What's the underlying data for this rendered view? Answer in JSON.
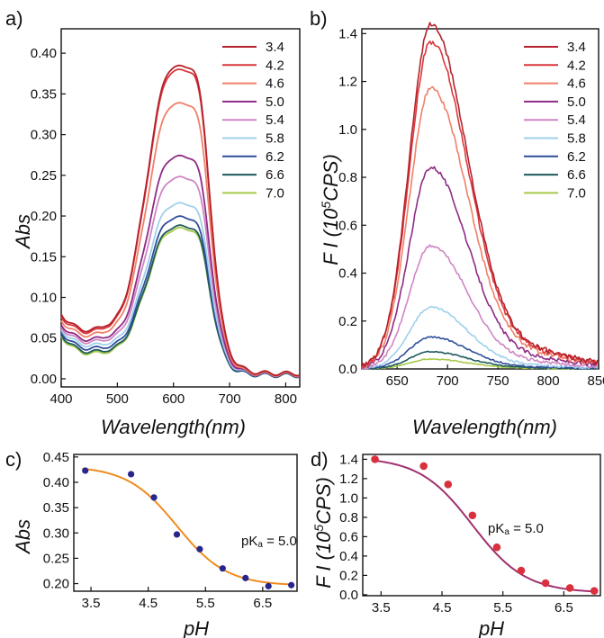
{
  "chart_data": [
    {
      "panel": "a)",
      "type": "line",
      "xlabel": "Wavelength(nm)",
      "ylabel": "Abs",
      "xlim": [
        400,
        825
      ],
      "ylim": [
        -0.01,
        0.43
      ],
      "xticks": [
        "400",
        "500",
        "600",
        "700",
        "800"
      ],
      "yticks": [
        "0.00",
        "0.05",
        "0.10",
        "0.15",
        "0.20",
        "0.25",
        "0.30",
        "0.35",
        "0.40"
      ],
      "legend_placement": "top-right",
      "series": [
        {
          "name": "3.4",
          "color": "#b5222b",
          "peak": 0.42,
          "shoulder": 0.37,
          "base400": 0.075,
          "valley": 0.05,
          "tail": 0.006
        },
        {
          "name": "4.2",
          "color": "#d9383e",
          "peak": 0.415,
          "shoulder": 0.365,
          "base400": 0.072,
          "valley": 0.048,
          "tail": 0.006
        },
        {
          "name": "4.6",
          "color": "#ef8068",
          "peak": 0.37,
          "shoulder": 0.325,
          "base400": 0.068,
          "valley": 0.045,
          "tail": 0.005
        },
        {
          "name": "5.0",
          "color": "#8e2b85",
          "peak": 0.297,
          "shoulder": 0.262,
          "base400": 0.063,
          "valley": 0.04,
          "tail": 0.005
        },
        {
          "name": "5.4",
          "color": "#cf86c4",
          "peak": 0.268,
          "shoulder": 0.237,
          "base400": 0.06,
          "valley": 0.037,
          "tail": 0.005
        },
        {
          "name": "5.8",
          "color": "#9fd0ec",
          "peak": 0.232,
          "shoulder": 0.206,
          "base400": 0.057,
          "valley": 0.033,
          "tail": 0.005
        },
        {
          "name": "6.2",
          "color": "#2f4e9a",
          "peak": 0.215,
          "shoulder": 0.19,
          "base400": 0.055,
          "valley": 0.03,
          "tail": 0.004
        },
        {
          "name": "6.6",
          "color": "#1e5a5c",
          "peak": 0.203,
          "shoulder": 0.18,
          "base400": 0.052,
          "valley": 0.026,
          "tail": 0.004
        },
        {
          "name": "7.0",
          "color": "#a6c94a",
          "peak": 0.2,
          "shoulder": 0.177,
          "base400": 0.05,
          "valley": 0.024,
          "tail": 0.004
        }
      ]
    },
    {
      "panel": "b)",
      "type": "line",
      "xlabel": "Wavelength(nm)",
      "ylabel": "F I (10",
      "ylabel_sup": "5",
      "ylabel_tail": "CPS)",
      "xlim": [
        615,
        850
      ],
      "ylim": [
        0,
        1.42
      ],
      "xticks": [
        "650",
        "700",
        "750",
        "800",
        "850"
      ],
      "yticks": [
        "0.0",
        "0.2",
        "0.4",
        "0.6",
        "0.8",
        "1.0",
        "1.2",
        "1.4"
      ],
      "legend_placement": "top-right",
      "series": [
        {
          "name": "3.4",
          "color": "#b5222b",
          "peak": 1.4
        },
        {
          "name": "4.2",
          "color": "#d9383e",
          "peak": 1.33
        },
        {
          "name": "4.6",
          "color": "#ef8068",
          "peak": 1.14
        },
        {
          "name": "5.0",
          "color": "#8e2b85",
          "peak": 0.82
        },
        {
          "name": "5.4",
          "color": "#cf86c4",
          "peak": 0.5
        },
        {
          "name": "5.8",
          "color": "#9fd0ec",
          "peak": 0.25
        },
        {
          "name": "6.2",
          "color": "#2f4e9a",
          "peak": 0.13
        },
        {
          "name": "6.6",
          "color": "#1e5a5c",
          "peak": 0.07
        },
        {
          "name": "7.0",
          "color": "#a6c94a",
          "peak": 0.04
        }
      ]
    },
    {
      "panel": "c)",
      "type": "scatter",
      "xlabel": "pH",
      "ylabel": "Abs",
      "xlim": [
        3.2,
        7.1
      ],
      "ylim": [
        0.185,
        0.455
      ],
      "xticks": [
        "3.5",
        "4.5",
        "5.5",
        "6.5"
      ],
      "yticks": [
        "0.20",
        "0.25",
        "0.30",
        "0.35",
        "0.40",
        "0.45"
      ],
      "annotation": "pK",
      "annotation_sub": "a",
      "annotation_tail": " = 5.0",
      "marker_color": "#26268c",
      "fit_color": "#f08c1e",
      "fit": {
        "top": 0.432,
        "bottom": 0.196,
        "pKa": 5.0
      },
      "points": [
        {
          "x": 3.4,
          "y": 0.423
        },
        {
          "x": 4.2,
          "y": 0.416
        },
        {
          "x": 4.6,
          "y": 0.37
        },
        {
          "x": 5.0,
          "y": 0.297
        },
        {
          "x": 5.4,
          "y": 0.268
        },
        {
          "x": 5.8,
          "y": 0.23
        },
        {
          "x": 6.2,
          "y": 0.211
        },
        {
          "x": 6.6,
          "y": 0.195
        },
        {
          "x": 7.0,
          "y": 0.197
        }
      ]
    },
    {
      "panel": "d)",
      "type": "scatter",
      "xlabel": "pH",
      "ylabel": "F I (10",
      "ylabel_sup": "5",
      "ylabel_tail": "CPS)",
      "xlim": [
        3.2,
        7.1
      ],
      "ylim": [
        -0.01,
        1.45
      ],
      "xticks": [
        "3.5",
        "4.5",
        "5.5",
        "6.5"
      ],
      "yticks": [
        "0.0",
        "0.2",
        "0.4",
        "0.6",
        "0.8",
        "1.0",
        "1.2",
        "1.4"
      ],
      "annotation": "pK",
      "annotation_sub": "a",
      "annotation_tail": " = 5.0",
      "marker_color": "#d9303e",
      "fit_color": "#a0306e",
      "fit": {
        "top": 1.42,
        "bottom": 0.02,
        "pKa": 5.0
      },
      "points": [
        {
          "x": 3.4,
          "y": 1.4
        },
        {
          "x": 4.2,
          "y": 1.33
        },
        {
          "x": 4.6,
          "y": 1.14
        },
        {
          "x": 5.0,
          "y": 0.82
        },
        {
          "x": 5.4,
          "y": 0.49
        },
        {
          "x": 5.8,
          "y": 0.25
        },
        {
          "x": 6.2,
          "y": 0.12
        },
        {
          "x": 6.6,
          "y": 0.07
        },
        {
          "x": 7.0,
          "y": 0.04
        }
      ]
    }
  ]
}
